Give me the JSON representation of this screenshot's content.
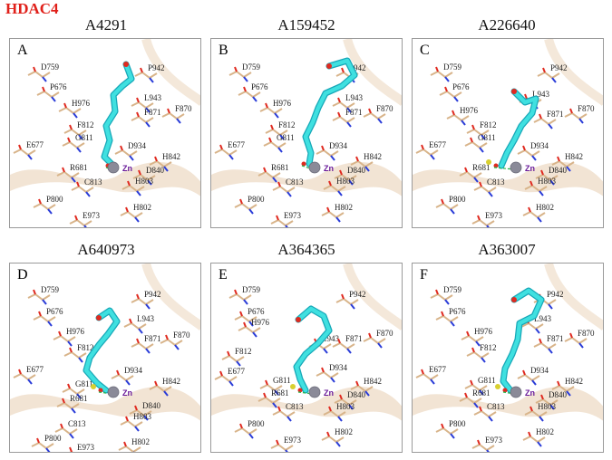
{
  "figure_title": "HDAC4",
  "zn_label": "Zn",
  "colors": {
    "title": "#e0201a",
    "ligand": "#3fe0e0",
    "ligand_dark": "#18a8b8",
    "protein": "#d8b48a",
    "ribbon": "#ecd9c2",
    "nitrogen": "#2a3cd8",
    "oxygen": "#e02a20",
    "sulfur": "#d8d030",
    "zinc": "#8a8a98",
    "hbond": "#2ab84a"
  },
  "panels": [
    {
      "letter": "A",
      "compound": "A4291",
      "residues": [
        "D759",
        "P676",
        "P942",
        "H976",
        "L943",
        "F871",
        "F870",
        "F812",
        "G811",
        "E677",
        "D934",
        "H842",
        "R681",
        "D840",
        "C813",
        "H803",
        "P800",
        "H802",
        "E973"
      ]
    },
    {
      "letter": "B",
      "compound": "A159452",
      "residues": [
        "D759",
        "P676",
        "P942",
        "H976",
        "L943",
        "F871",
        "F870",
        "F812",
        "G811",
        "E677",
        "D934",
        "H842",
        "R681",
        "D840",
        "C813",
        "H803",
        "P800",
        "H802",
        "E973"
      ]
    },
    {
      "letter": "C",
      "compound": "A226640",
      "residues": [
        "D759",
        "P676",
        "P942",
        "L943",
        "H976",
        "F871",
        "F870",
        "F812",
        "G811",
        "E677",
        "D934",
        "H842",
        "R681",
        "D840",
        "C813",
        "H803",
        "P800",
        "H802",
        "E973"
      ]
    },
    {
      "letter": "D",
      "compound": "A640973",
      "residues": [
        "D759",
        "P676",
        "P942",
        "L943",
        "H976",
        "F871",
        "F870",
        "F812",
        "E677",
        "D934",
        "G811",
        "H842",
        "R681",
        "D840",
        "C813",
        "H803",
        "P800",
        "H802",
        "E973"
      ]
    },
    {
      "letter": "E",
      "compound": "A364365",
      "residues": [
        "D759",
        "P942",
        "P676",
        "H976",
        "L943",
        "F871",
        "F870",
        "F812",
        "E677",
        "G811",
        "D934",
        "H842",
        "R681",
        "D840",
        "C813",
        "H803",
        "P800",
        "H802",
        "E973"
      ]
    },
    {
      "letter": "F",
      "compound": "A363007",
      "residues": [
        "D759",
        "P676",
        "P942",
        "L943",
        "H976",
        "F871",
        "F870",
        "F812",
        "E677",
        "G811",
        "D934",
        "H842",
        "R681",
        "D840",
        "C813",
        "H803",
        "P800",
        "H802",
        "E973"
      ]
    }
  ]
}
